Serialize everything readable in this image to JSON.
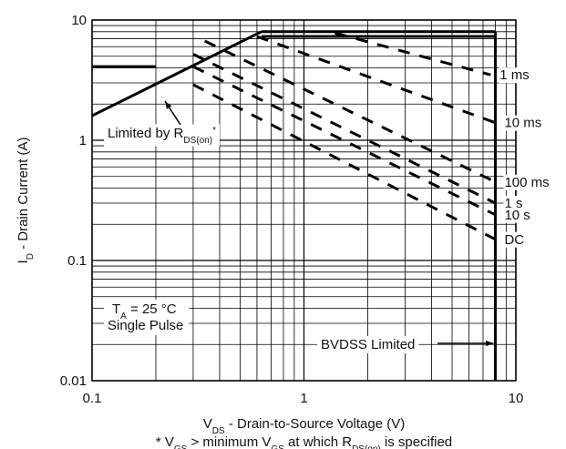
{
  "chart_data": {
    "type": "line",
    "xlabel": [
      "V",
      "DS",
      " - Drain-to-Source Voltage (V)"
    ],
    "ylabel": [
      "I",
      "D",
      " - Drain Current (A)"
    ],
    "footnote": [
      "* V",
      "GS",
      " > minimum V",
      "GS",
      " at which R",
      "DS(on)",
      " is specified"
    ],
    "log_x": true,
    "log_y": true,
    "grid": true,
    "xlim": [
      0.1,
      10
    ],
    "ylim": [
      0.01,
      10
    ],
    "xticks": [
      0.1,
      1,
      10
    ],
    "yticks": [
      0.01,
      0.1,
      1,
      10
    ],
    "limits": [
      {
        "x": [
          0.1,
          0.63
        ],
        "values": [
          1.6,
          8
        ]
      },
      {
        "x": [
          0.1,
          0.2
        ],
        "values": [
          4.1,
          4.1
        ]
      },
      {
        "x": [
          0.63,
          8
        ],
        "values": [
          8,
          8
        ]
      },
      {
        "x": [
          0.63,
          8
        ],
        "values": [
          7.3,
          7.3
        ]
      },
      {
        "x": [
          8,
          8
        ],
        "values": [
          0.01,
          8
        ]
      }
    ],
    "series": [
      {
        "name": "1 ms",
        "x": [
          1.4,
          7.6
        ],
        "values": [
          7.8,
          3.5
        ]
      },
      {
        "name": "10 ms",
        "x": [
          0.6,
          8
        ],
        "values": [
          7.3,
          1.4
        ]
      },
      {
        "name": "100 ms",
        "x": [
          0.34,
          8
        ],
        "values": [
          6.7,
          0.45
        ]
      },
      {
        "name": "1 s",
        "x": [
          0.3,
          8
        ],
        "values": [
          5.2,
          0.3
        ]
      },
      {
        "name": "10 s",
        "x": [
          0.3,
          8
        ],
        "values": [
          4.1,
          0.24
        ]
      },
      {
        "name": "DC",
        "x": [
          0.3,
          8
        ],
        "values": [
          2.9,
          0.15
        ]
      }
    ],
    "color": "#000000",
    "annotations": {
      "rds": [
        "Limited by R",
        "DS(on)",
        "*"
      ],
      "ta": [
        "T",
        "A",
        " = 25 °C"
      ],
      "pulse": "Single Pulse",
      "bvdss": "BVDSS Limited"
    }
  }
}
